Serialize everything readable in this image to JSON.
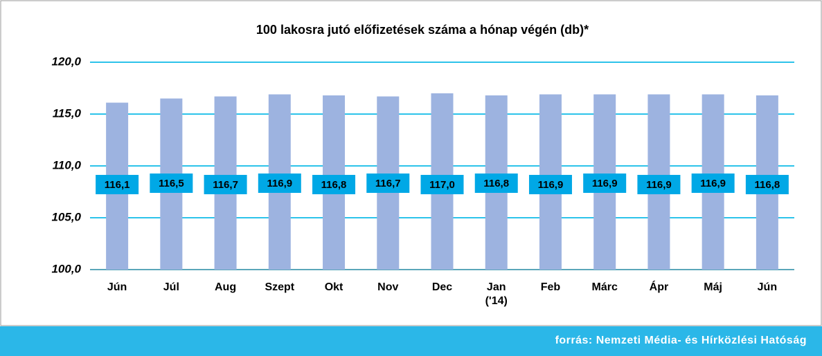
{
  "chart_data": {
    "type": "bar",
    "title": "100 lakosra jutó előfizetések száma a hónap végén (db)*",
    "categories": [
      "Jún",
      "Júl",
      "Aug",
      "Szept",
      "Okt",
      "Nov",
      "Dec",
      "Jan\n('14)",
      "Feb",
      "Márc",
      "Ápr",
      "Máj",
      "Jún"
    ],
    "values": [
      116.1,
      116.5,
      116.7,
      116.9,
      116.8,
      116.7,
      117.0,
      116.8,
      116.9,
      116.9,
      116.9,
      116.9,
      116.8
    ],
    "value_labels": [
      "116,1",
      "116,5",
      "116,7",
      "116,9",
      "116,8",
      "116,7",
      "117,0",
      "116,8",
      "116,9",
      "116,9",
      "116,9",
      "116,9",
      "116,8"
    ],
    "color": "#9db3e0",
    "label_color": "#00a8e6",
    "grid_color": "#2cc3ea",
    "ylim": [
      100,
      120
    ],
    "yticks": [
      {
        "value": 100,
        "label": "100,0"
      },
      {
        "value": 105,
        "label": "105,0"
      },
      {
        "value": 110,
        "label": "110,0"
      },
      {
        "value": 115,
        "label": "115,0"
      },
      {
        "value": 120,
        "label": "120,0"
      }
    ],
    "grid": true
  },
  "source": "forrás: Nemzeti Média- és Hírközlési Hatóság"
}
